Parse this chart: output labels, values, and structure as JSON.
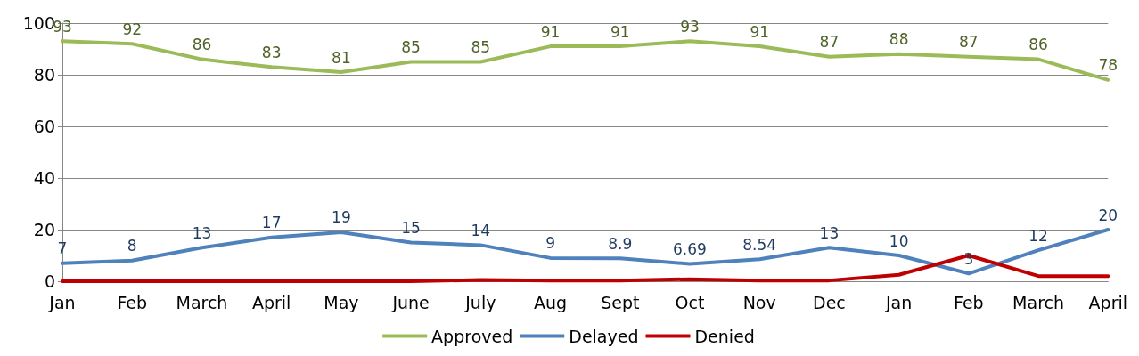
{
  "chart_data": {
    "type": "line",
    "categories": [
      "Jan",
      "Feb",
      "March",
      "April",
      "May",
      "June",
      "July",
      "Aug",
      "Sept",
      "Oct",
      "Nov",
      "Dec",
      "Jan",
      "Feb",
      "March",
      "April"
    ],
    "series": [
      {
        "name": "Approved",
        "color": "#9bbb59",
        "values": [
          93,
          92,
          86,
          83,
          81,
          85,
          85,
          91,
          91,
          93,
          91,
          87,
          88,
          87,
          86,
          78
        ],
        "value_labels": [
          "93",
          "92",
          "86",
          "83",
          "81",
          "85",
          "85",
          "91",
          "91",
          "93",
          "91",
          "87",
          "88",
          "87",
          "86",
          "78"
        ]
      },
      {
        "name": "Delayed",
        "color": "#4f81bd",
        "values": [
          7,
          8,
          13,
          17,
          19,
          15,
          14,
          9,
          8.9,
          6.69,
          8.54,
          13,
          10,
          3,
          12,
          20
        ],
        "value_labels": [
          "7",
          "8",
          "13",
          "17",
          "19",
          "15",
          "14",
          "9",
          "8.9",
          "6.69",
          "8.54",
          "13",
          "10",
          "3",
          "12",
          "20"
        ]
      },
      {
        "name": "Denied",
        "color": "#c00000",
        "values": [
          0,
          0,
          0,
          0,
          0,
          0,
          0.5,
          0.3,
          0.3,
          0.8,
          0.3,
          0.3,
          2.5,
          10,
          2,
          2
        ]
      }
    ],
    "ylim": [
      0,
      100
    ],
    "yticks": [
      0,
      20,
      40,
      60,
      80,
      100
    ],
    "grid": "y",
    "legend": "bottom",
    "marker": "none",
    "line_style": "solid"
  }
}
